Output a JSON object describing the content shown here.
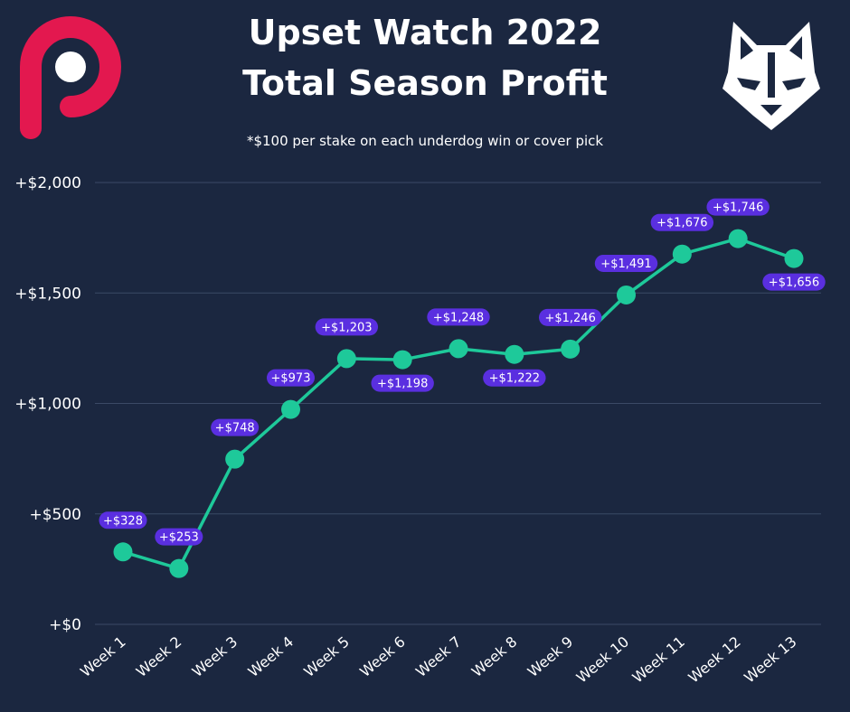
{
  "header": {
    "title_line1": "Upset Watch 2022",
    "title_line2": "Total Season Profit",
    "subtitle": "*$100 per stake on each underdog win or cover pick"
  },
  "logos": {
    "left": "p-logo-icon",
    "right": "wolf-logo-icon"
  },
  "colors": {
    "background": "#1b2740",
    "line": "#1ec99a",
    "label_bg": "#5a2fe0",
    "grid": "#3b4a66",
    "logo_p": "#e3184f"
  },
  "chart_data": {
    "type": "line",
    "title": "Total Season Profit",
    "categories": [
      "Week 1",
      "Week 2",
      "Week 3",
      "Week 4",
      "Week 5",
      "Week 6",
      "Week 7",
      "Week 8",
      "Week 9",
      "Week 10",
      "Week 11",
      "Week 12",
      "Week 13"
    ],
    "values": [
      328,
      253,
      748,
      973,
      1203,
      1198,
      1248,
      1222,
      1246,
      1491,
      1676,
      1746,
      1656
    ],
    "data_labels": [
      "+$328",
      "+$253",
      "+$748",
      "+$973",
      "+$1,203",
      "+$1,198",
      "+$1,248",
      "+$1,222",
      "+$1,246",
      "+$1,491",
      "+$1,676",
      "+$1,746",
      "+$1,656"
    ],
    "label_position": [
      "above",
      "above",
      "above",
      "above",
      "above",
      "below",
      "above",
      "below",
      "above",
      "above",
      "above",
      "above",
      "below"
    ],
    "y_ticks": [
      0,
      500,
      1000,
      1500,
      2000
    ],
    "y_tick_labels": [
      "+$0",
      "+$500",
      "+$1,000",
      "+$1,500",
      "+$2,000"
    ],
    "ylim": [
      0,
      2000
    ],
    "grid": true,
    "legend": "none"
  }
}
